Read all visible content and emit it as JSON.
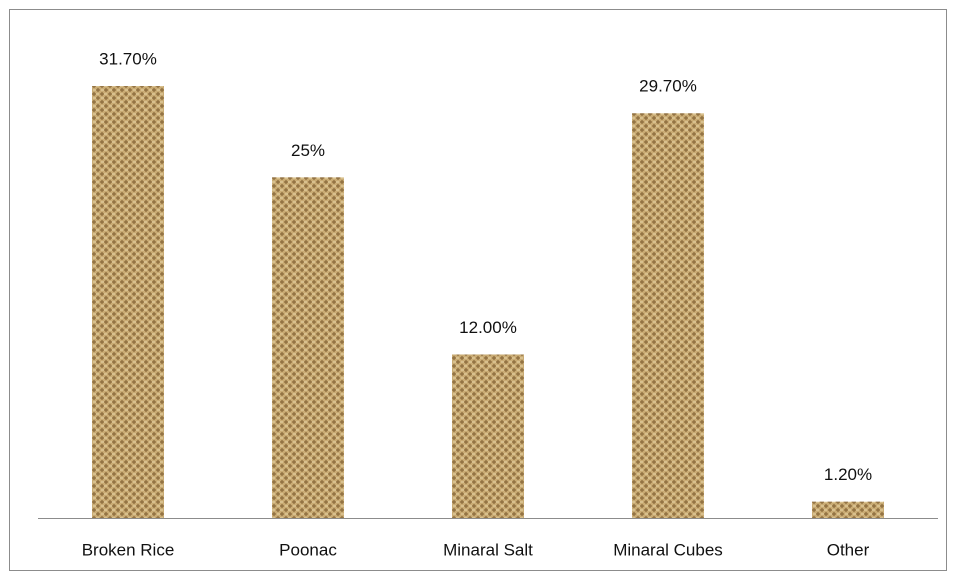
{
  "chart_data": {
    "type": "bar",
    "categories": [
      "Broken Rice",
      "Poonac",
      "Minaral Salt",
      "Minaral Cubes",
      "Other"
    ],
    "values": [
      31.7,
      25,
      12,
      29.7,
      1.2
    ],
    "value_labels": [
      "31.70%",
      "25%",
      "12.00%",
      "29.70%",
      "1.20%"
    ],
    "color": "#c4a46c"
  }
}
